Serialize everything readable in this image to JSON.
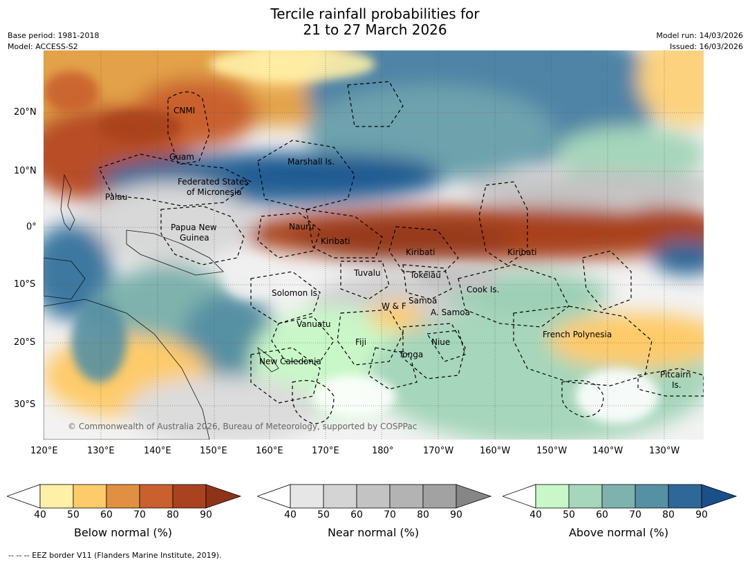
{
  "title_line1": "Tercile rainfall probabilities for",
  "title_line2": "21 to 27 March 2026",
  "base_period": "Base period: 1981-2018",
  "model": "Model: ACCESS-S2",
  "model_run": "Model run: 14/03/2026",
  "issued": "Issued: 16/03/2026",
  "copyright": "© Commonwealth of Australia 2026, Bureau of Meteorology, supported by COSPPac",
  "footer": "--  --  -- EEZ border V11 (Flanders Marine Institute, 2019).",
  "lat_ticks": [
    "20°N",
    "10°N",
    "0°",
    "10°S",
    "20°S",
    "30°S"
  ],
  "lon_ticks": [
    "120°E",
    "130°E",
    "140°E",
    "150°E",
    "160°E",
    "170°E",
    "180°",
    "170°W",
    "160°W",
    "150°W",
    "140°W",
    "130°W"
  ],
  "regions": {
    "cnmi": "CNMI",
    "guam": "Guam",
    "marshall": "Marshall Is.",
    "fsm1": "Federated States",
    "fsm2": "of Micronesia",
    "palau": "Palau",
    "png1": "Papua New",
    "png2": "Guinea",
    "nauru": "Nauru",
    "kiribati_w": "Kiribati",
    "kiribati_c": "Kiribati",
    "kiribati_e": "Kiribati",
    "tuvalu": "Tuvalu",
    "tokelau": "Tokelau",
    "cook": "Cook Is.",
    "solomon": "Solomon Is.",
    "wf": "W & F",
    "samoa": "Samoa",
    "asamoa": "A. Samoa",
    "vanuatu": "Vanuatu",
    "fiji": "Fiji",
    "niue": "Niue",
    "tonga": "Tonga",
    "frpoly": "French Polynesia",
    "newcal": "New Caledonia",
    "pitcairn1": "Pitcairn",
    "pitcairn2": "Is."
  },
  "colorbars": [
    {
      "label": "Below normal (%)",
      "ticks": [
        "40",
        "50",
        "60",
        "70",
        "80",
        "90"
      ],
      "colors": [
        "#fff0a8",
        "#fecb6a",
        "#e09040",
        "#c9602e",
        "#a9431f"
      ],
      "extend": "#8e3318"
    },
    {
      "label": "Near normal (%)",
      "ticks": [
        "40",
        "50",
        "60",
        "70",
        "80",
        "90"
      ],
      "colors": [
        "#e6e6e6",
        "#d4d4d4",
        "#c3c3c3",
        "#b3b3b3",
        "#a2a2a2"
      ],
      "extend": "#868686"
    },
    {
      "label": "Above normal (%)",
      "ticks": [
        "40",
        "50",
        "60",
        "70",
        "80",
        "90"
      ],
      "colors": [
        "#c9f7c8",
        "#a6d6bb",
        "#7fb2ad",
        "#5690a3",
        "#2f6898"
      ],
      "extend": "#1a4f8a"
    }
  ]
}
